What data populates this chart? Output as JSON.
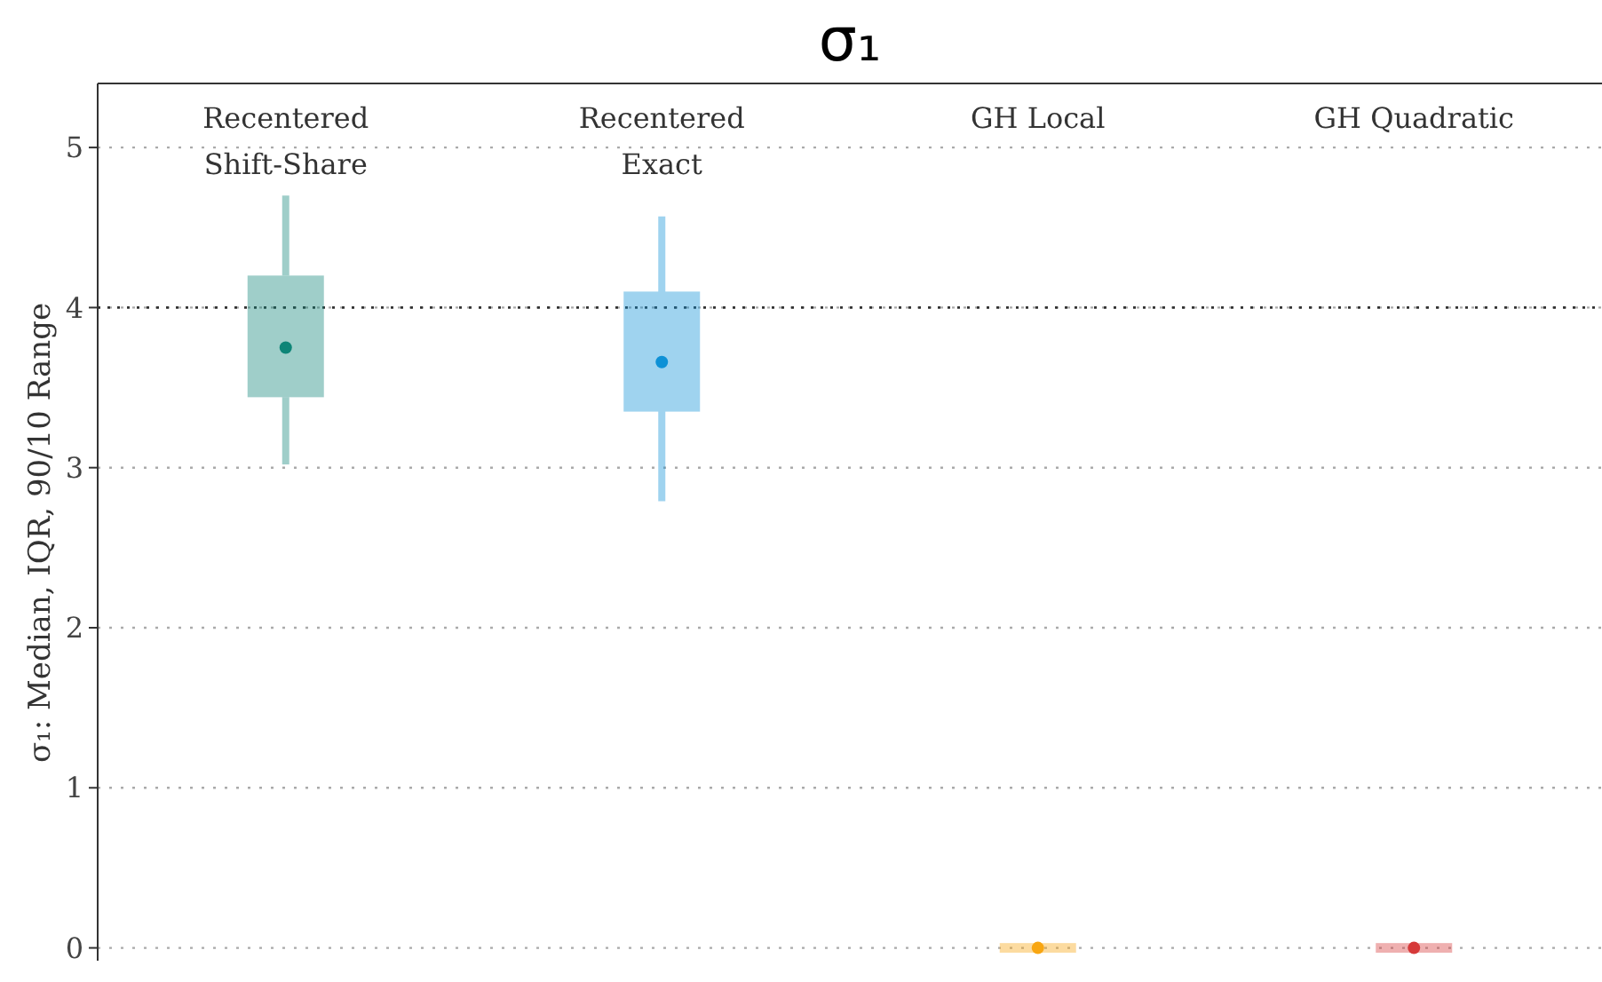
{
  "chart_data": {
    "type": "box",
    "title": "σ₁",
    "ylabel": "σ₁: Median, IQR, 90/10 Range",
    "categories": [
      "Recentered Shift-Share",
      "Recentered Exact",
      "GH Local",
      "GH Quadratic"
    ],
    "colors": [
      "#0e8577",
      "#0e91d6",
      "#f8a612",
      "#d63a3a"
    ],
    "boxes": [
      {
        "low": 3.02,
        "q1": 3.44,
        "median": 3.75,
        "q3": 4.2,
        "high": 4.7
      },
      {
        "low": 2.79,
        "q1": 3.35,
        "median": 3.66,
        "q3": 4.1,
        "high": 4.57
      },
      {
        "low": -0.03,
        "q1": -0.03,
        "median": 0,
        "q3": 0.03,
        "high": 0.03
      },
      {
        "low": -0.03,
        "q1": -0.03,
        "median": 0,
        "q3": 0.03,
        "high": 0.03
      }
    ],
    "ylim": [
      -0.08,
      5.4
    ],
    "yticks": [
      0,
      1,
      2,
      3,
      4,
      5
    ],
    "grid": "y",
    "ref_lines": [
      {
        "axis": "y",
        "value": 4,
        "color": "#333333",
        "line_style": "dotted"
      }
    ]
  }
}
